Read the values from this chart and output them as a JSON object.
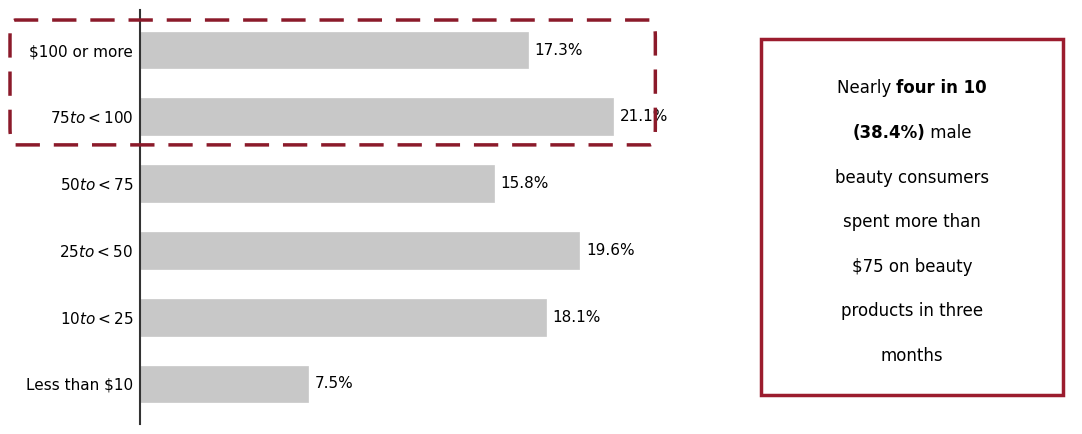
{
  "categories": [
    "$100 or more",
    "$75 to <$100",
    "$50 to <$75",
    "$25 to <$50",
    "$10 to <$25",
    "Less than $10"
  ],
  "values": [
    17.3,
    21.1,
    15.8,
    19.6,
    18.1,
    7.5
  ],
  "bar_color": "#c8c8c8",
  "bar_edge_color": "#c8c8c8",
  "dashed_box_color": "#8b1a2a",
  "annotation_box_color": "#9b1c2e",
  "xlim": [
    0,
    26
  ],
  "background_color": "#ffffff",
  "label_fontsize": 11,
  "value_fontsize": 11,
  "axis_color": "#333333",
  "annotation_lines": [
    {
      "text": "Nearly ",
      "bold": false
    },
    {
      "text": "four in 10",
      "bold": true
    },
    {
      "text": " (38.4%)",
      "bold": true
    },
    {
      "text": " male",
      "bold": false
    },
    {
      "text": "beauty consumers",
      "bold": false
    },
    {
      "text": "spent more than",
      "bold": false
    },
    {
      "text": "$75 on beauty",
      "bold": false
    },
    {
      "text": "products in three",
      "bold": false
    },
    {
      "text": "months",
      "bold": false
    }
  ]
}
